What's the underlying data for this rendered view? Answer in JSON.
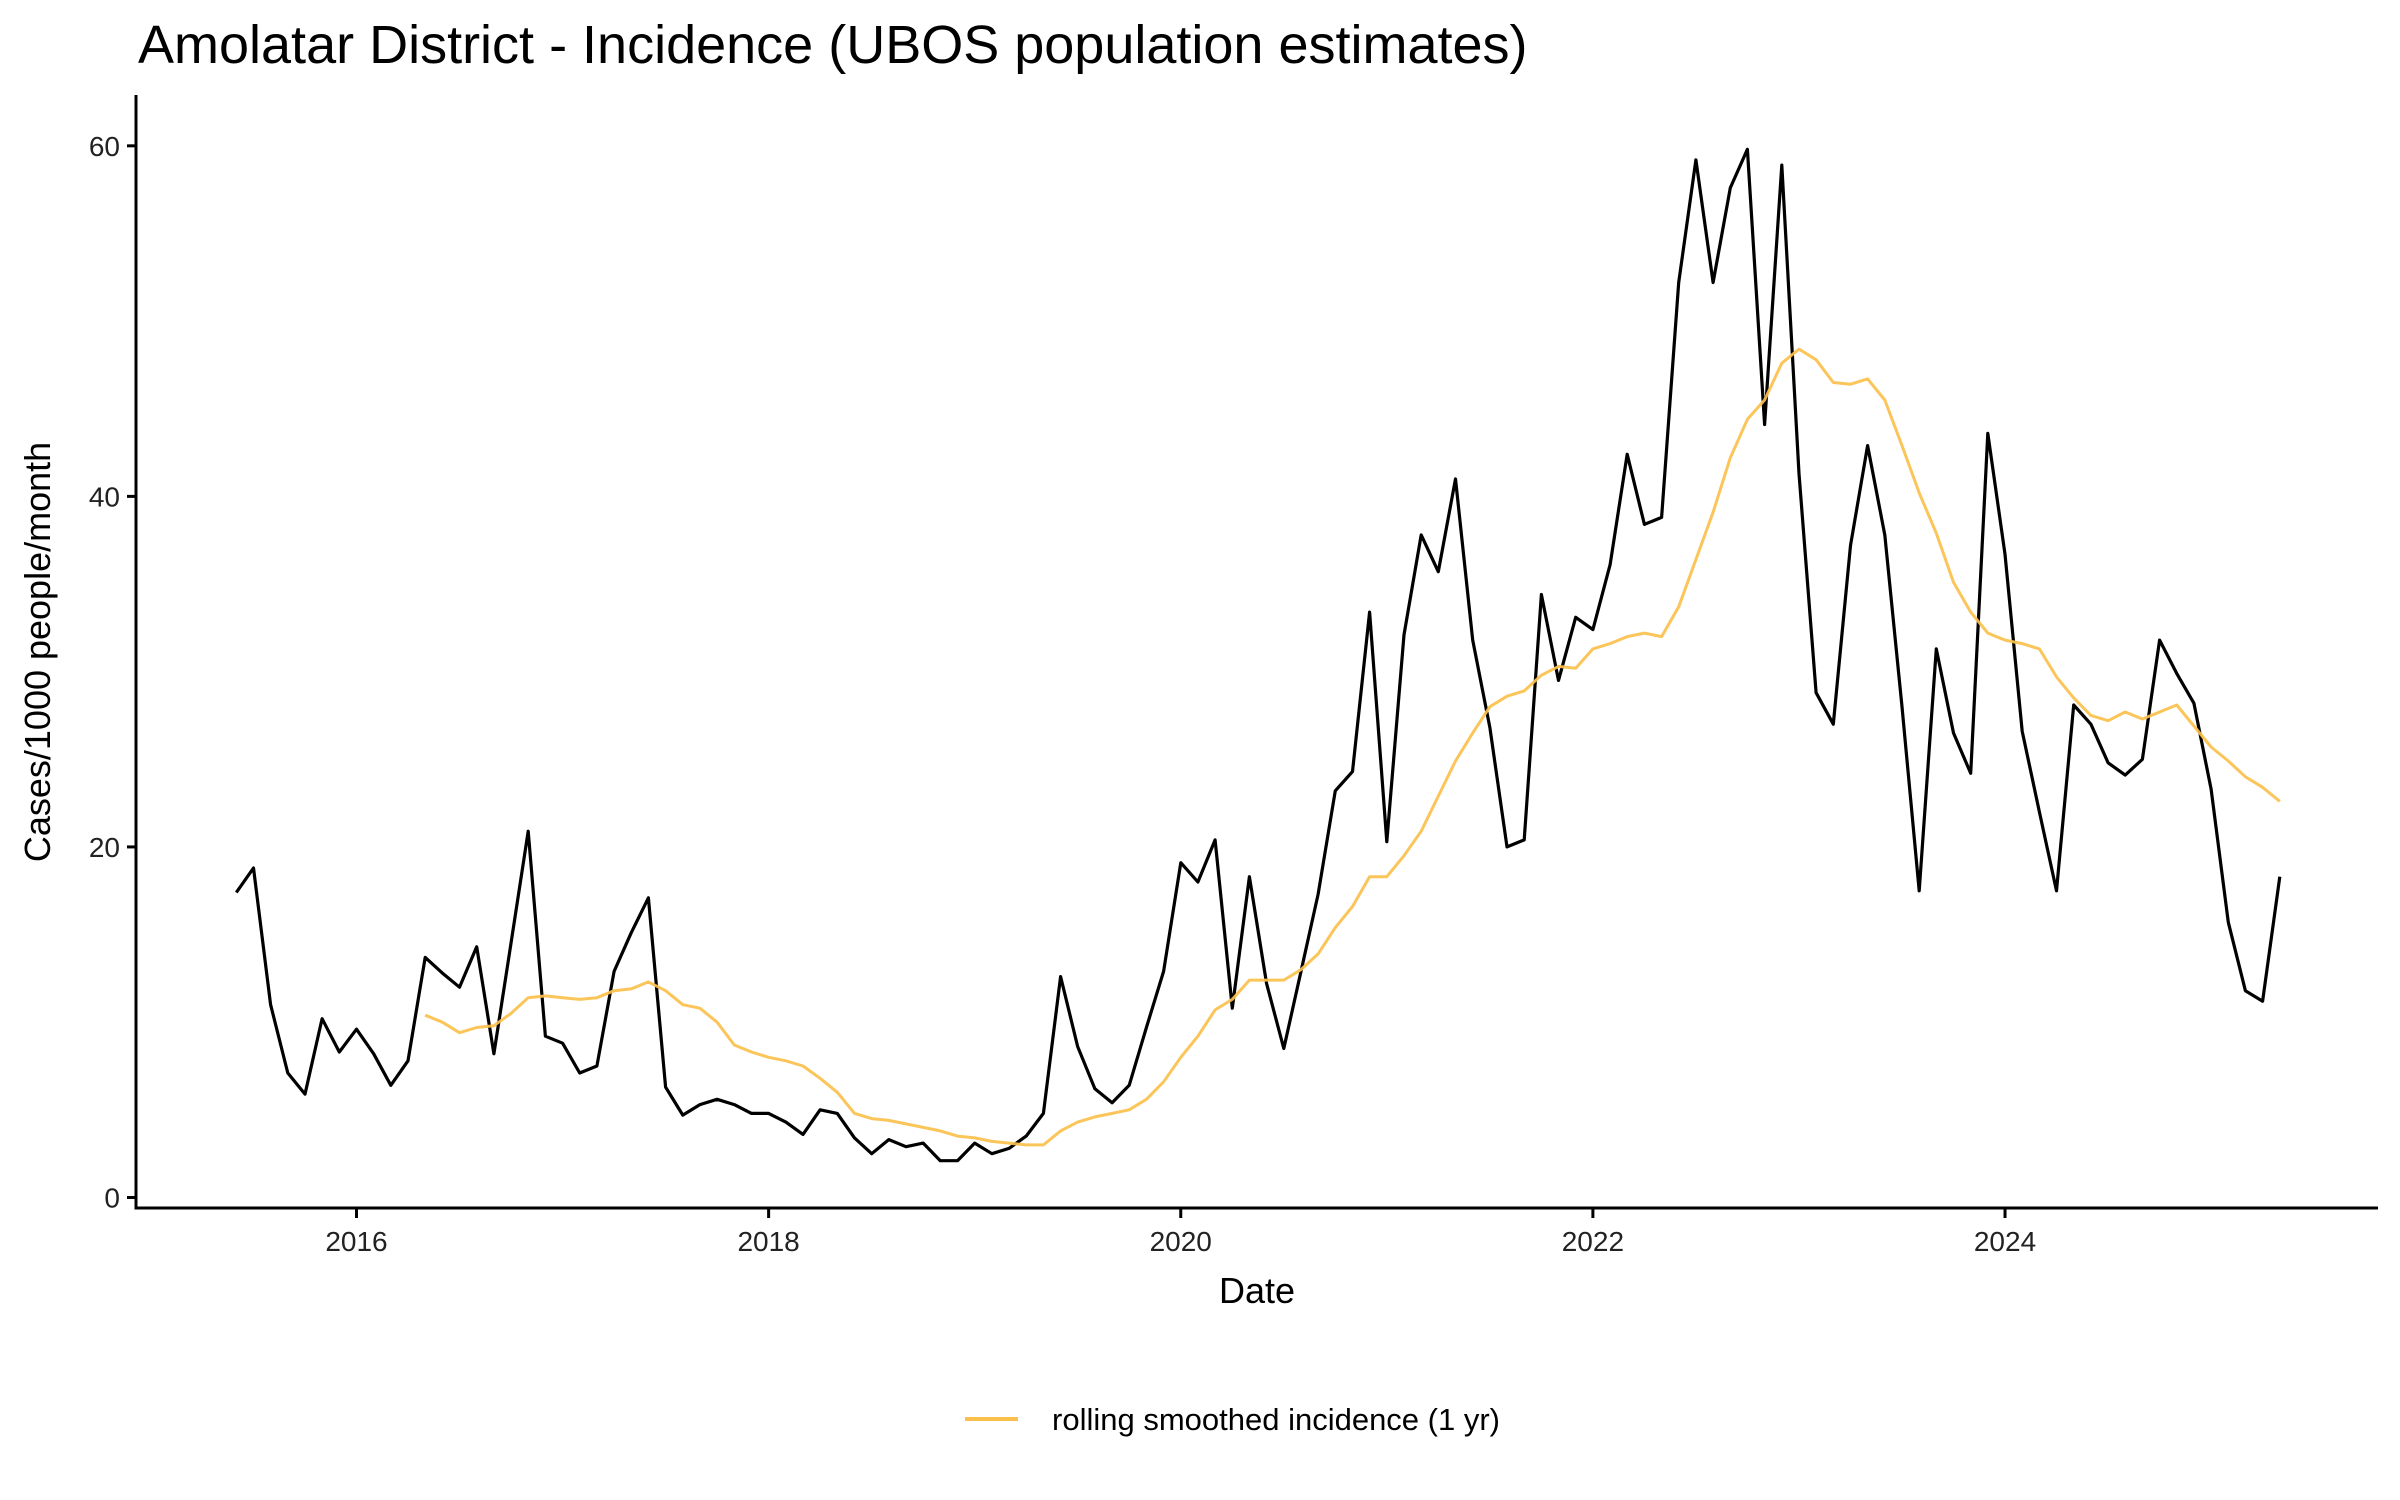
{
  "chart_data": {
    "type": "line",
    "title": "Amolatar District - Incidence (UBOS population estimates)",
    "xlabel": "Date",
    "ylabel": "Cases/1000 people/month",
    "xlim": [
      2014.93,
      2025.81
    ],
    "ylim": [
      -0.6,
      62.9
    ],
    "x_ticks": [
      "2016",
      "2018",
      "2020",
      "2022",
      "2024"
    ],
    "y_ticks": [
      "0",
      "20",
      "40",
      "60"
    ],
    "grid": false,
    "legend": {
      "position": "bottom",
      "entries": [
        "rolling smoothed incidence (1 yr)"
      ]
    },
    "series": [
      {
        "name": "incidence",
        "color": "#000000",
        "in_legend": false,
        "start": "2015-06",
        "values": [
          17.4,
          18.8,
          11.0,
          7.1,
          5.9,
          10.2,
          8.3,
          9.6,
          8.2,
          6.4,
          7.8,
          13.7,
          12.8,
          12.0,
          14.3,
          8.2,
          14.5,
          20.9,
          9.2,
          8.8,
          7.1,
          7.5,
          12.9,
          15.1,
          17.1,
          6.3,
          4.7,
          5.3,
          5.6,
          5.3,
          4.8,
          4.8,
          4.3,
          3.6,
          5.0,
          4.8,
          3.4,
          2.5,
          3.3,
          2.9,
          3.1,
          2.1,
          2.1,
          3.1,
          2.5,
          2.8,
          3.5,
          4.8,
          12.6,
          8.6,
          6.2,
          5.4,
          6.4,
          9.7,
          12.9,
          19.1,
          18.0,
          20.4,
          10.8,
          18.3,
          12.2,
          8.5,
          12.9,
          17.3,
          23.2,
          24.3,
          33.4,
          20.3,
          32.1,
          37.8,
          35.7,
          41.0,
          31.8,
          26.8,
          20.0,
          20.4,
          34.4,
          29.5,
          33.1,
          32.4,
          36.1,
          42.4,
          38.4,
          38.8,
          52.2,
          59.2,
          52.2,
          57.6,
          59.8,
          44.1,
          58.9,
          41.3,
          28.8,
          27.0,
          37.2,
          42.9,
          37.8,
          28.0,
          17.5,
          31.3,
          26.5,
          24.2,
          43.6,
          36.7,
          26.6,
          22.0,
          17.5,
          28.1,
          27.0,
          24.8,
          24.1,
          25.0,
          31.8,
          29.9,
          28.2,
          23.3,
          15.7,
          11.8,
          11.2,
          18.3
        ]
      },
      {
        "name": "rolling smoothed incidence (1 yr)",
        "color": "#FBC04C",
        "in_legend": true,
        "start": "2016-05",
        "values": [
          10.4,
          10.0,
          9.4,
          9.7,
          9.8,
          10.5,
          11.4,
          11.5,
          11.4,
          11.3,
          11.4,
          11.8,
          11.9,
          12.3,
          11.8,
          11.0,
          10.8,
          10.0,
          8.7,
          8.3,
          8.0,
          7.8,
          7.5,
          6.8,
          6.0,
          4.8,
          4.5,
          4.4,
          4.2,
          4.0,
          3.8,
          3.5,
          3.4,
          3.2,
          3.1,
          3.0,
          3.0,
          3.8,
          4.3,
          4.6,
          4.8,
          5.0,
          5.6,
          6.6,
          8.0,
          9.2,
          10.7,
          11.3,
          12.4,
          12.4,
          12.4,
          13.0,
          13.9,
          15.4,
          16.6,
          18.3,
          18.3,
          19.5,
          20.9,
          22.9,
          24.9,
          26.5,
          28.0,
          28.6,
          28.9,
          29.8,
          30.3,
          30.2,
          31.3,
          31.6,
          32.0,
          32.2,
          32.0,
          33.7,
          36.4,
          39.1,
          42.2,
          44.4,
          45.5,
          47.6,
          48.4,
          47.8,
          46.5,
          46.4,
          46.7,
          45.5,
          42.9,
          40.2,
          37.9,
          35.1,
          33.4,
          32.2,
          31.8,
          31.6,
          31.3,
          29.7,
          28.5,
          27.5,
          27.2,
          27.7,
          27.3,
          27.7,
          28.1,
          26.9,
          25.7,
          24.9,
          24.0,
          23.4,
          22.6
        ]
      }
    ]
  }
}
